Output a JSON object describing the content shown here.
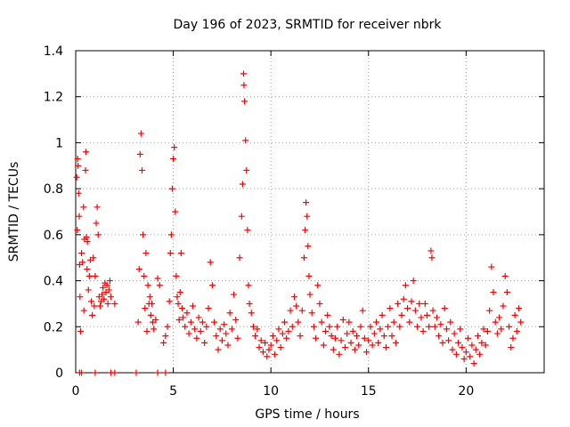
{
  "chart_data": {
    "type": "scatter",
    "title": "Day 196 of 2023, SRMTID for receiver nbrk",
    "xlabel": "GPS time / hours",
    "ylabel": "SRMTID / TECUs",
    "xlim": [
      0,
      24
    ],
    "ylim": [
      0,
      1.4
    ],
    "xticks": [
      0,
      5,
      10,
      15,
      20
    ],
    "xtick_labels": [
      "0",
      "5",
      "10",
      "15",
      "20"
    ],
    "yticks": [
      0,
      0.2,
      0.4,
      0.6,
      0.8,
      1.0,
      1.2,
      1.4
    ],
    "ytick_labels": [
      "0",
      "0.2",
      "0.4",
      "0.6",
      "0.8",
      "1",
      "1.2",
      "1.4"
    ],
    "grid": true,
    "marker": "+",
    "color": "#ff0000",
    "series": [
      {
        "name": "SRMTID",
        "points": [
          [
            0.05,
            0.85
          ],
          [
            0.08,
            0.62
          ],
          [
            0.1,
            0.93
          ],
          [
            0.12,
            0.9
          ],
          [
            0.15,
            0.78
          ],
          [
            0.18,
            0.68
          ],
          [
            0.2,
            0.47
          ],
          [
            0.22,
            0.33
          ],
          [
            0.25,
            0.18
          ],
          [
            0.3,
            0.52
          ],
          [
            0.35,
            0.48
          ],
          [
            0.4,
            0.72
          ],
          [
            0.42,
            0.27
          ],
          [
            0.45,
            0.58
          ],
          [
            0.5,
            0.88
          ],
          [
            0.52,
            0.96
          ],
          [
            0.55,
            0.59
          ],
          [
            0.58,
            0.45
          ],
          [
            0.6,
            0.57
          ],
          [
            0.65,
            0.36
          ],
          [
            0.7,
            0.42
          ],
          [
            0.75,
            0.49
          ],
          [
            0.8,
            0.31
          ],
          [
            0.85,
            0.25
          ],
          [
            0.9,
            0.5
          ],
          [
            0.95,
            0.29
          ],
          [
            1.0,
            0.42
          ],
          [
            1.05,
            0.65
          ],
          [
            1.1,
            0.72
          ],
          [
            1.15,
            0.6
          ],
          [
            1.2,
            0.33
          ],
          [
            1.25,
            0.29
          ],
          [
            1.3,
            0.31
          ],
          [
            1.35,
            0.34
          ],
          [
            1.4,
            0.37
          ],
          [
            1.45,
            0.32
          ],
          [
            1.5,
            0.39
          ],
          [
            1.55,
            0.35
          ],
          [
            1.6,
            0.38
          ],
          [
            1.65,
            0.3
          ],
          [
            1.7,
            0.36
          ],
          [
            1.75,
            0.4
          ],
          [
            1.8,
            0.33
          ],
          [
            2.0,
            0.3
          ],
          [
            3.2,
            0.22
          ],
          [
            3.25,
            0.45
          ],
          [
            3.3,
            0.95
          ],
          [
            3.35,
            1.04
          ],
          [
            3.4,
            0.88
          ],
          [
            3.45,
            0.6
          ],
          [
            3.5,
            0.42
          ],
          [
            3.55,
            0.28
          ],
          [
            3.6,
            0.52
          ],
          [
            3.65,
            0.18
          ],
          [
            3.7,
            0.38
          ],
          [
            3.75,
            0.3
          ],
          [
            3.8,
            0.33
          ],
          [
            3.85,
            0.25
          ],
          [
            3.9,
            0.3
          ],
          [
            3.95,
            0.22
          ],
          [
            4.0,
            0.19
          ],
          [
            4.1,
            0.23
          ],
          [
            4.2,
            0.41
          ],
          [
            4.3,
            0.38
          ],
          [
            4.5,
            0.13
          ],
          [
            4.6,
            0.16
          ],
          [
            4.7,
            0.2
          ],
          [
            4.8,
            0.31
          ],
          [
            4.85,
            0.52
          ],
          [
            4.9,
            0.6
          ],
          [
            4.95,
            0.8
          ],
          [
            5.0,
            0.93
          ],
          [
            5.05,
            0.98
          ],
          [
            5.1,
            0.7
          ],
          [
            5.15,
            0.42
          ],
          [
            5.2,
            0.33
          ],
          [
            5.25,
            0.3
          ],
          [
            5.3,
            0.23
          ],
          [
            5.35,
            0.35
          ],
          [
            5.4,
            0.52
          ],
          [
            5.45,
            0.28
          ],
          [
            5.5,
            0.24
          ],
          [
            5.6,
            0.2
          ],
          [
            5.7,
            0.26
          ],
          [
            5.8,
            0.17
          ],
          [
            5.9,
            0.22
          ],
          [
            6.0,
            0.29
          ],
          [
            6.1,
            0.19
          ],
          [
            6.2,
            0.15
          ],
          [
            6.3,
            0.24
          ],
          [
            6.4,
            0.18
          ],
          [
            6.5,
            0.22
          ],
          [
            6.6,
            0.13
          ],
          [
            6.7,
            0.2
          ],
          [
            6.8,
            0.28
          ],
          [
            6.9,
            0.48
          ],
          [
            7.0,
            0.38
          ],
          [
            7.1,
            0.22
          ],
          [
            7.2,
            0.16
          ],
          [
            7.3,
            0.1
          ],
          [
            7.4,
            0.19
          ],
          [
            7.5,
            0.14
          ],
          [
            7.6,
            0.21
          ],
          [
            7.7,
            0.17
          ],
          [
            7.8,
            0.12
          ],
          [
            7.9,
            0.26
          ],
          [
            8.0,
            0.19
          ],
          [
            8.1,
            0.34
          ],
          [
            8.2,
            0.23
          ],
          [
            8.3,
            0.15
          ],
          [
            8.4,
            0.5
          ],
          [
            8.5,
            0.68
          ],
          [
            8.55,
            0.82
          ],
          [
            8.6,
            1.3
          ],
          [
            8.62,
            1.25
          ],
          [
            8.65,
            1.18
          ],
          [
            8.7,
            1.01
          ],
          [
            8.75,
            0.88
          ],
          [
            8.8,
            0.62
          ],
          [
            8.85,
            0.38
          ],
          [
            8.9,
            0.3
          ],
          [
            9.0,
            0.26
          ],
          [
            9.1,
            0.2
          ],
          [
            9.2,
            0.16
          ],
          [
            9.3,
            0.19
          ],
          [
            9.4,
            0.11
          ],
          [
            9.5,
            0.14
          ],
          [
            9.6,
            0.09
          ],
          [
            9.7,
            0.13
          ],
          [
            9.8,
            0.07
          ],
          [
            9.9,
            0.1
          ],
          [
            10.0,
            0.12
          ],
          [
            10.1,
            0.16
          ],
          [
            10.2,
            0.08
          ],
          [
            10.3,
            0.14
          ],
          [
            10.4,
            0.19
          ],
          [
            10.5,
            0.11
          ],
          [
            10.6,
            0.17
          ],
          [
            10.7,
            0.22
          ],
          [
            10.8,
            0.15
          ],
          [
            10.9,
            0.18
          ],
          [
            11.0,
            0.27
          ],
          [
            11.1,
            0.2
          ],
          [
            11.2,
            0.33
          ],
          [
            11.3,
            0.29
          ],
          [
            11.4,
            0.22
          ],
          [
            11.5,
            0.16
          ],
          [
            11.6,
            0.27
          ],
          [
            11.7,
            0.5
          ],
          [
            11.75,
            0.62
          ],
          [
            11.8,
            0.74
          ],
          [
            11.85,
            0.68
          ],
          [
            11.9,
            0.55
          ],
          [
            11.95,
            0.42
          ],
          [
            12.0,
            0.34
          ],
          [
            12.1,
            0.26
          ],
          [
            12.2,
            0.2
          ],
          [
            12.3,
            0.15
          ],
          [
            12.4,
            0.38
          ],
          [
            12.5,
            0.3
          ],
          [
            12.6,
            0.22
          ],
          [
            12.7,
            0.12
          ],
          [
            12.8,
            0.18
          ],
          [
            12.9,
            0.25
          ],
          [
            13.0,
            0.2
          ],
          [
            13.1,
            0.16
          ],
          [
            13.2,
            0.1
          ],
          [
            13.3,
            0.15
          ],
          [
            13.4,
            0.2
          ],
          [
            13.5,
            0.08
          ],
          [
            13.6,
            0.14
          ],
          [
            13.7,
            0.23
          ],
          [
            13.8,
            0.11
          ],
          [
            13.9,
            0.17
          ],
          [
            14.0,
            0.22
          ],
          [
            14.1,
            0.13
          ],
          [
            14.2,
            0.18
          ],
          [
            14.3,
            0.1
          ],
          [
            14.4,
            0.16
          ],
          [
            14.5,
            0.12
          ],
          [
            14.6,
            0.2
          ],
          [
            14.7,
            0.27
          ],
          [
            14.8,
            0.15
          ],
          [
            14.9,
            0.09
          ],
          [
            15.0,
            0.14
          ],
          [
            15.1,
            0.2
          ],
          [
            15.2,
            0.12
          ],
          [
            15.3,
            0.17
          ],
          [
            15.4,
            0.22
          ],
          [
            15.5,
            0.13
          ],
          [
            15.6,
            0.19
          ],
          [
            15.7,
            0.25
          ],
          [
            15.8,
            0.16
          ],
          [
            15.9,
            0.11
          ],
          [
            16.0,
            0.2
          ],
          [
            16.1,
            0.28
          ],
          [
            16.2,
            0.16
          ],
          [
            16.3,
            0.22
          ],
          [
            16.4,
            0.13
          ],
          [
            16.5,
            0.3
          ],
          [
            16.6,
            0.2
          ],
          [
            16.7,
            0.25
          ],
          [
            16.8,
            0.32
          ],
          [
            16.9,
            0.38
          ],
          [
            17.0,
            0.28
          ],
          [
            17.1,
            0.22
          ],
          [
            17.2,
            0.31
          ],
          [
            17.3,
            0.4
          ],
          [
            17.4,
            0.27
          ],
          [
            17.5,
            0.2
          ],
          [
            17.6,
            0.3
          ],
          [
            17.7,
            0.24
          ],
          [
            17.8,
            0.18
          ],
          [
            17.9,
            0.3
          ],
          [
            18.0,
            0.25
          ],
          [
            18.1,
            0.2
          ],
          [
            18.2,
            0.53
          ],
          [
            18.25,
            0.5
          ],
          [
            18.3,
            0.27
          ],
          [
            18.4,
            0.2
          ],
          [
            18.5,
            0.24
          ],
          [
            18.6,
            0.16
          ],
          [
            18.7,
            0.21
          ],
          [
            18.8,
            0.13
          ],
          [
            18.9,
            0.28
          ],
          [
            19.0,
            0.19
          ],
          [
            19.1,
            0.14
          ],
          [
            19.2,
            0.22
          ],
          [
            19.3,
            0.1
          ],
          [
            19.4,
            0.17
          ],
          [
            19.5,
            0.08
          ],
          [
            19.6,
            0.13
          ],
          [
            19.7,
            0.19
          ],
          [
            19.8,
            0.11
          ],
          [
            19.9,
            0.06
          ],
          [
            20.0,
            0.09
          ],
          [
            20.1,
            0.15
          ],
          [
            20.2,
            0.07
          ],
          [
            20.3,
            0.12
          ],
          [
            20.4,
            0.04
          ],
          [
            20.5,
            0.1
          ],
          [
            20.6,
            0.16
          ],
          [
            20.7,
            0.08
          ],
          [
            20.8,
            0.13
          ],
          [
            20.9,
            0.19
          ],
          [
            21.0,
            0.12
          ],
          [
            21.1,
            0.18
          ],
          [
            21.2,
            0.27
          ],
          [
            21.3,
            0.46
          ],
          [
            21.4,
            0.35
          ],
          [
            21.5,
            0.22
          ],
          [
            21.6,
            0.17
          ],
          [
            21.7,
            0.24
          ],
          [
            21.8,
            0.19
          ],
          [
            21.9,
            0.29
          ],
          [
            22.0,
            0.42
          ],
          [
            22.1,
            0.35
          ],
          [
            22.2,
            0.2
          ],
          [
            22.3,
            0.11
          ],
          [
            22.4,
            0.15
          ],
          [
            22.5,
            0.25
          ],
          [
            22.6,
            0.18
          ],
          [
            22.7,
            0.28
          ],
          [
            22.8,
            0.22
          ],
          [
            0.2,
            0.0
          ],
          [
            0.3,
            0.0
          ],
          [
            1.0,
            0.0
          ],
          [
            1.8,
            0.0
          ],
          [
            2.0,
            0.0
          ],
          [
            3.1,
            0.0
          ],
          [
            4.2,
            0.0
          ],
          [
            4.6,
            0.0
          ]
        ]
      }
    ]
  }
}
